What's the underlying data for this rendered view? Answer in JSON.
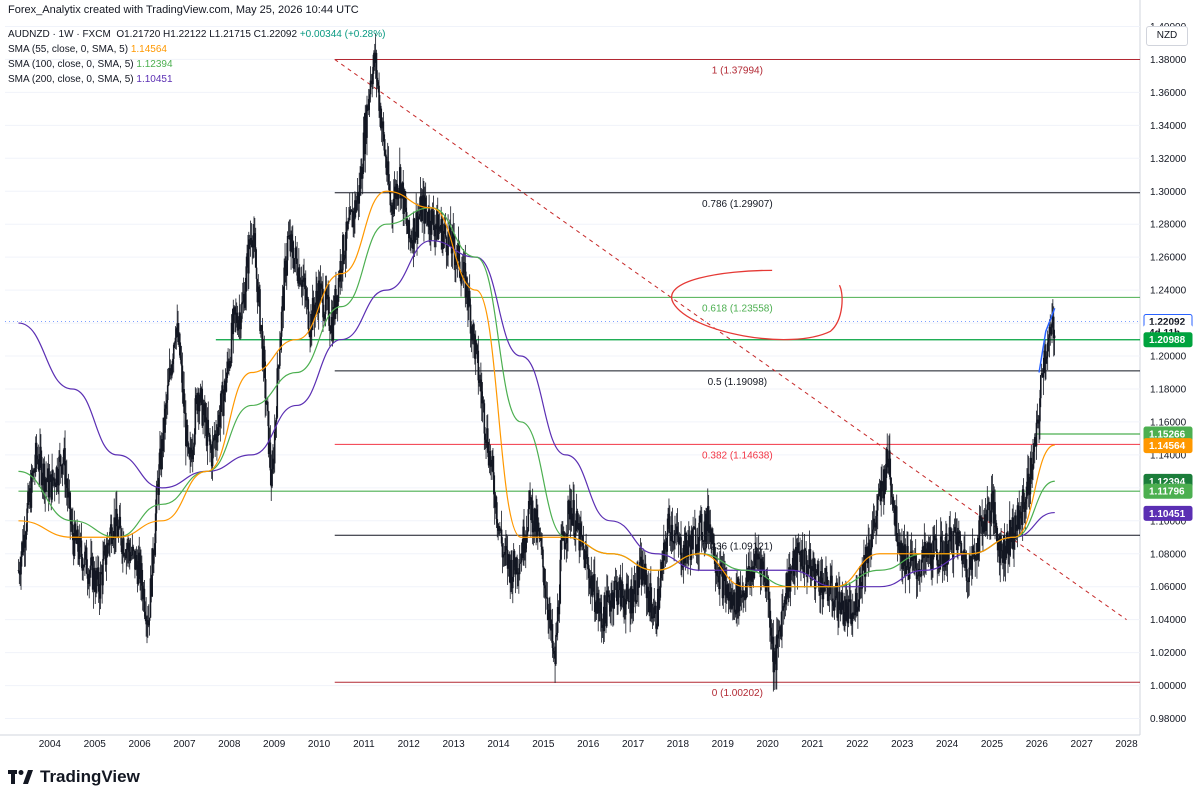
{
  "header": {
    "credit": "Forex_Analytix created with TradingView.com, May 25, 2026 10:44 UTC"
  },
  "legend": {
    "symbol": "AUDNZD · 1W · FXCM",
    "ohlc": "O1.21720  H1.22122  L1.21715  C1.22092",
    "change": "+0.00344 (+0.28%)",
    "sma55_label": "SMA (55, close, 0, SMA, 5)",
    "sma55_value": "1.14564",
    "sma100_label": "SMA (100, close, 0, SMA, 5)",
    "sma100_value": "1.12394",
    "sma200_label": "SMA (200, close, 0, SMA, 5)",
    "sma200_value": "1.10451"
  },
  "currency": "NZD",
  "logo": {
    "text": "TradingView"
  },
  "chart_data": {
    "type": "line",
    "subtype": "weekly candlestick with moving averages and Fibonacci retracement",
    "symbol": "AUDNZD",
    "ylim": [
      0.97,
      1.41
    ],
    "y_ticks": [
      "1.40000",
      "1.38000",
      "1.36000",
      "1.34000",
      "1.32000",
      "1.30000",
      "1.28000",
      "1.26000",
      "1.24000",
      "1.22000",
      "1.20000",
      "1.18000",
      "1.16000",
      "1.14000",
      "1.12000",
      "1.10000",
      "1.08000",
      "1.06000",
      "1.04000",
      "1.02000",
      "1.00000",
      "0.98000"
    ],
    "x_ticks": [
      "2004",
      "2005",
      "2006",
      "2007",
      "2008",
      "2009",
      "2010",
      "2011",
      "2012",
      "2013",
      "2014",
      "2015",
      "2016",
      "2017",
      "2018",
      "2019",
      "2020",
      "2021",
      "2022",
      "2023",
      "2024",
      "2025",
      "2026",
      "2027",
      "2028"
    ],
    "price_path": [
      [
        2003.3,
        1.07
      ],
      [
        2003.7,
        1.14
      ],
      [
        2004.0,
        1.12
      ],
      [
        2004.3,
        1.14
      ],
      [
        2004.5,
        1.09
      ],
      [
        2004.9,
        1.07
      ],
      [
        2005.1,
        1.06
      ],
      [
        2005.4,
        1.1
      ],
      [
        2005.8,
        1.08
      ],
      [
        2006.0,
        1.07
      ],
      [
        2006.2,
        1.04
      ],
      [
        2006.4,
        1.12
      ],
      [
        2006.6,
        1.17
      ],
      [
        2006.8,
        1.22
      ],
      [
        2006.9,
        1.2
      ],
      [
        2007.1,
        1.13
      ],
      [
        2007.3,
        1.18
      ],
      [
        2007.6,
        1.14
      ],
      [
        2007.9,
        1.18
      ],
      [
        2008.1,
        1.22
      ],
      [
        2008.3,
        1.23
      ],
      [
        2008.5,
        1.28
      ],
      [
        2008.7,
        1.22
      ],
      [
        2008.85,
        1.16
      ],
      [
        2008.95,
        1.12
      ],
      [
        2009.1,
        1.2
      ],
      [
        2009.3,
        1.27
      ],
      [
        2009.6,
        1.25
      ],
      [
        2009.8,
        1.22
      ],
      [
        2010.0,
        1.24
      ],
      [
        2010.3,
        1.22
      ],
      [
        2010.5,
        1.26
      ],
      [
        2010.7,
        1.28
      ],
      [
        2010.9,
        1.3
      ],
      [
        2011.0,
        1.33
      ],
      [
        2011.15,
        1.37
      ],
      [
        2011.25,
        1.38
      ],
      [
        2011.4,
        1.34
      ],
      [
        2011.6,
        1.29
      ],
      [
        2011.8,
        1.31
      ],
      [
        2012.0,
        1.27
      ],
      [
        2012.3,
        1.29
      ],
      [
        2012.6,
        1.28
      ],
      [
        2012.9,
        1.27
      ],
      [
        2013.1,
        1.26
      ],
      [
        2013.3,
        1.24
      ],
      [
        2013.5,
        1.2
      ],
      [
        2013.7,
        1.16
      ],
      [
        2013.9,
        1.12
      ],
      [
        2014.1,
        1.08
      ],
      [
        2014.3,
        1.07
      ],
      [
        2014.5,
        1.08
      ],
      [
        2014.7,
        1.11
      ],
      [
        2014.9,
        1.09
      ],
      [
        2015.1,
        1.05
      ],
      [
        2015.25,
        1.01
      ],
      [
        2015.4,
        1.08
      ],
      [
        2015.6,
        1.11
      ],
      [
        2015.8,
        1.09
      ],
      [
        2016.0,
        1.07
      ],
      [
        2016.3,
        1.04
      ],
      [
        2016.6,
        1.06
      ],
      [
        2016.9,
        1.05
      ],
      [
        2017.2,
        1.07
      ],
      [
        2017.5,
        1.04
      ],
      [
        2017.8,
        1.1
      ],
      [
        2018.1,
        1.08
      ],
      [
        2018.4,
        1.09
      ],
      [
        2018.7,
        1.1
      ],
      [
        2018.9,
        1.07
      ],
      [
        2019.2,
        1.05
      ],
      [
        2019.5,
        1.06
      ],
      [
        2019.8,
        1.08
      ],
      [
        2020.0,
        1.06
      ],
      [
        2020.15,
        1.01
      ],
      [
        2020.4,
        1.06
      ],
      [
        2020.7,
        1.08
      ],
      [
        2021.0,
        1.07
      ],
      [
        2021.3,
        1.06
      ],
      [
        2021.6,
        1.05
      ],
      [
        2021.9,
        1.04
      ],
      [
        2022.1,
        1.07
      ],
      [
        2022.4,
        1.1
      ],
      [
        2022.7,
        1.14
      ],
      [
        2022.85,
        1.1
      ],
      [
        2023.0,
        1.08
      ],
      [
        2023.3,
        1.07
      ],
      [
        2023.6,
        1.08
      ],
      [
        2023.9,
        1.08
      ],
      [
        2024.2,
        1.09
      ],
      [
        2024.5,
        1.07
      ],
      [
        2024.8,
        1.1
      ],
      [
        2025.0,
        1.11
      ],
      [
        2025.2,
        1.08
      ],
      [
        2025.4,
        1.09
      ],
      [
        2025.6,
        1.1
      ],
      [
        2025.8,
        1.12
      ],
      [
        2026.0,
        1.15
      ],
      [
        2026.15,
        1.2
      ],
      [
        2026.3,
        1.21
      ],
      [
        2026.4,
        1.221
      ]
    ],
    "sma55_path": [
      [
        2003.3,
        1.1
      ],
      [
        2004.5,
        1.09
      ],
      [
        2005.5,
        1.09
      ],
      [
        2006.5,
        1.1
      ],
      [
        2007.5,
        1.13
      ],
      [
        2008.5,
        1.19
      ],
      [
        2009.5,
        1.21
      ],
      [
        2010.5,
        1.25
      ],
      [
        2011.5,
        1.3
      ],
      [
        2012.5,
        1.29
      ],
      [
        2013.5,
        1.24
      ],
      [
        2014.5,
        1.09
      ],
      [
        2015.5,
        1.09
      ],
      [
        2016.5,
        1.08
      ],
      [
        2017.5,
        1.07
      ],
      [
        2018.5,
        1.08
      ],
      [
        2019.5,
        1.06
      ],
      [
        2020.5,
        1.06
      ],
      [
        2021.5,
        1.06
      ],
      [
        2022.5,
        1.08
      ],
      [
        2023.5,
        1.08
      ],
      [
        2024.5,
        1.08
      ],
      [
        2025.5,
        1.09
      ],
      [
        2026.4,
        1.146
      ]
    ],
    "sma100_path": [
      [
        2003.3,
        1.13
      ],
      [
        2004.5,
        1.1
      ],
      [
        2005.5,
        1.09
      ],
      [
        2006.5,
        1.11
      ],
      [
        2007.5,
        1.13
      ],
      [
        2008.5,
        1.17
      ],
      [
        2009.5,
        1.19
      ],
      [
        2010.5,
        1.23
      ],
      [
        2011.5,
        1.28
      ],
      [
        2012.5,
        1.29
      ],
      [
        2013.5,
        1.26
      ],
      [
        2014.5,
        1.16
      ],
      [
        2015.5,
        1.09
      ],
      [
        2016.5,
        1.08
      ],
      [
        2017.5,
        1.07
      ],
      [
        2018.5,
        1.08
      ],
      [
        2019.5,
        1.07
      ],
      [
        2020.5,
        1.06
      ],
      [
        2021.5,
        1.06
      ],
      [
        2022.5,
        1.07
      ],
      [
        2023.5,
        1.08
      ],
      [
        2024.5,
        1.08
      ],
      [
        2025.5,
        1.09
      ],
      [
        2026.4,
        1.124
      ]
    ],
    "sma200_path": [
      [
        2003.3,
        1.22
      ],
      [
        2004.5,
        1.18
      ],
      [
        2005.5,
        1.14
      ],
      [
        2006.5,
        1.12
      ],
      [
        2007.5,
        1.13
      ],
      [
        2008.5,
        1.14
      ],
      [
        2009.5,
        1.17
      ],
      [
        2010.5,
        1.21
      ],
      [
        2011.5,
        1.24
      ],
      [
        2012.5,
        1.27
      ],
      [
        2013.5,
        1.26
      ],
      [
        2014.5,
        1.2
      ],
      [
        2015.5,
        1.14
      ],
      [
        2016.5,
        1.1
      ],
      [
        2017.5,
        1.08
      ],
      [
        2018.5,
        1.07
      ],
      [
        2019.5,
        1.07
      ],
      [
        2020.5,
        1.07
      ],
      [
        2021.5,
        1.06
      ],
      [
        2022.5,
        1.06
      ],
      [
        2023.5,
        1.07
      ],
      [
        2024.5,
        1.08
      ],
      [
        2025.5,
        1.09
      ],
      [
        2026.4,
        1.105
      ]
    ],
    "fib_levels": [
      {
        "label": "1 (1.37994)",
        "value": 1.37994,
        "color": "#b22833"
      },
      {
        "label": "0.786 (1.29907)",
        "value": 1.29907,
        "color": "#131722"
      },
      {
        "label": "0.618 (1.23558)",
        "value": 1.23558,
        "color": "#4caf50"
      },
      {
        "label": "0.5 (1.19098)",
        "value": 1.19098,
        "color": "#131722"
      },
      {
        "label": "0.382 (1.14638)",
        "value": 1.14638,
        "color": "#f23645"
      },
      {
        "label": "0.236 (1.09121)",
        "value": 1.09121,
        "color": "#131722"
      },
      {
        "label": "0 (1.00202)",
        "value": 1.00202,
        "color": "#b22833"
      }
    ],
    "fib_start_x": 2010.35,
    "extra_levels": [
      {
        "value": 1.20988,
        "x_start": 2007.7,
        "color": "#00a33e"
      },
      {
        "value": 1.11796,
        "x_start": 2003.3,
        "color": "#4caf50"
      },
      {
        "value": 1.15266,
        "x_start": 2026.0,
        "color": "#4caf50"
      }
    ],
    "trendline": {
      "from": [
        2010.35,
        1.38
      ],
      "to": [
        2028.0,
        1.04
      ],
      "color": "#c62828",
      "style": "dashed"
    },
    "current_price_line": 1.22092,
    "price_labels": [
      {
        "text": "1.22092",
        "value": 1.22092,
        "bg": "#ffffff",
        "fg": "#131722",
        "border": "#2962ff"
      },
      {
        "text": "4d 11h",
        "value": 1.2144,
        "bg": "#ffffff",
        "fg": "#131722",
        "border": "#ffffff"
      },
      {
        "text": "1.20988",
        "value": 1.20988,
        "bg": "#00a33e",
        "fg": "#ffffff"
      },
      {
        "text": "1.15266",
        "value": 1.15266,
        "bg": "#4caf50",
        "fg": "#ffffff"
      },
      {
        "text": "1.14564",
        "value": 1.14564,
        "bg": "#ff9800",
        "fg": "#ffffff"
      },
      {
        "text": "1.12394",
        "value": 1.12394,
        "bg": "#1b7d3a",
        "fg": "#ffffff"
      },
      {
        "text": "1.11796",
        "value": 1.11796,
        "bg": "#4caf50",
        "fg": "#ffffff"
      },
      {
        "text": "1.10451",
        "value": 1.10451,
        "bg": "#5b2fb3",
        "fg": "#ffffff"
      }
    ],
    "colors": {
      "sma55": "#ff9800",
      "sma100": "#4caf50",
      "sma200": "#5b2fb3",
      "candle": "#131722",
      "grid": "#f0f3fa",
      "annotation": "#e53935",
      "projection": "#2962ff"
    }
  }
}
